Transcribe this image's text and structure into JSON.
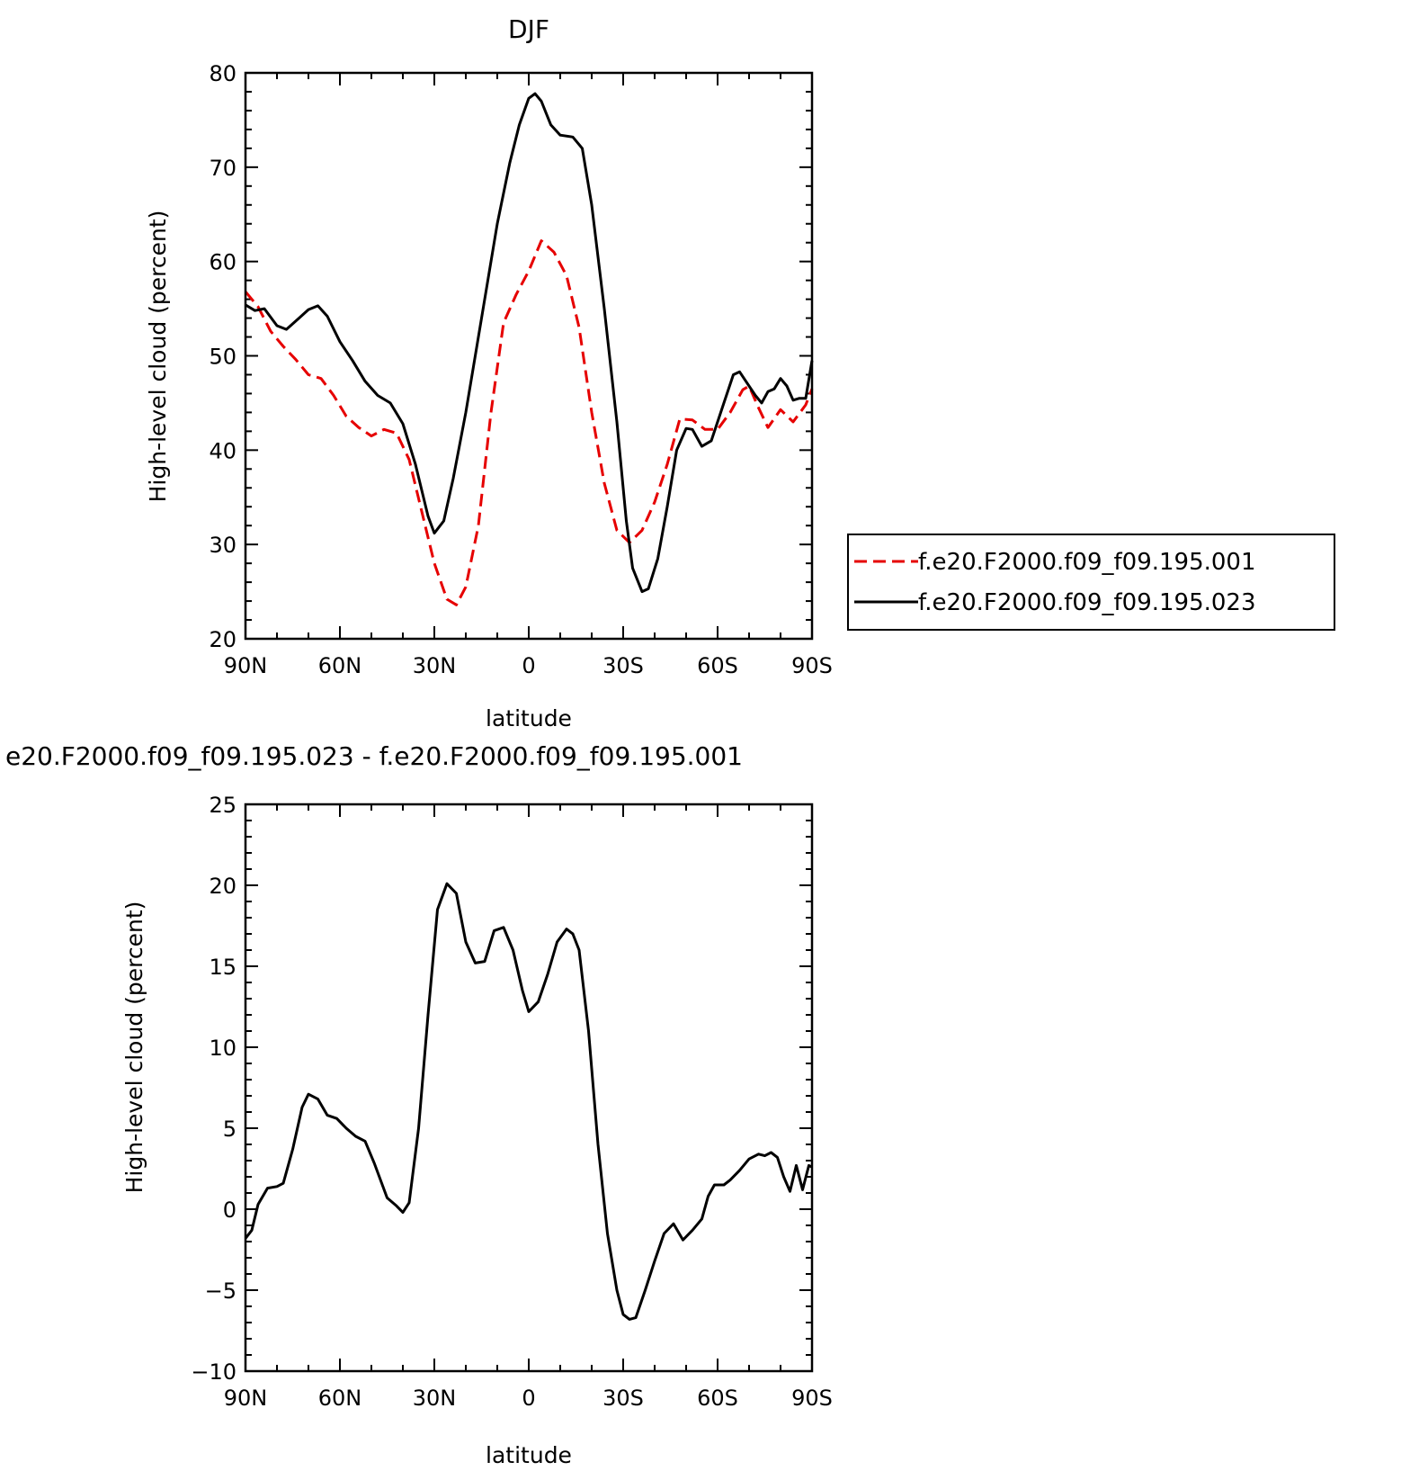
{
  "colors": {
    "model1": "#e60000",
    "model2": "#000000",
    "axis": "#000000"
  },
  "chart_data": [
    {
      "type": "line",
      "title": "DJF",
      "xlabel": "latitude",
      "ylabel": "High-level cloud (percent)",
      "xlim": [
        -90,
        90
      ],
      "ylim": [
        20,
        80
      ],
      "xticks": [
        -90,
        -60,
        -30,
        0,
        30,
        60,
        90
      ],
      "xtick_labels": [
        "90N",
        "60N",
        "30N",
        "0",
        "30S",
        "60S",
        "90S"
      ],
      "yticks": [
        20,
        30,
        40,
        50,
        60,
        70,
        80
      ],
      "ytick_labels": [
        "20",
        "30",
        "40",
        "50",
        "60",
        "70",
        "80"
      ],
      "grid": false,
      "legend": "outside-right",
      "series": [
        {
          "name": "f.e20.F2000.f09_f09.195.001",
          "color": "#e60000",
          "style": "dashed",
          "points": [
            [
              -90,
              56.8
            ],
            [
              -86,
              55.2
            ],
            [
              -82,
              52.6
            ],
            [
              -78,
              51.0
            ],
            [
              -74,
              49.6
            ],
            [
              -70,
              48.0
            ],
            [
              -66,
              47.6
            ],
            [
              -62,
              45.8
            ],
            [
              -58,
              43.6
            ],
            [
              -54,
              42.4
            ],
            [
              -50,
              41.5
            ],
            [
              -46,
              42.2
            ],
            [
              -42,
              41.8
            ],
            [
              -38,
              39.0
            ],
            [
              -34,
              33.5
            ],
            [
              -30,
              28.0
            ],
            [
              -26,
              24.2
            ],
            [
              -23,
              23.6
            ],
            [
              -20,
              25.5
            ],
            [
              -16,
              32.0
            ],
            [
              -12,
              44.0
            ],
            [
              -8,
              53.5
            ],
            [
              -4,
              56.5
            ],
            [
              0,
              59.0
            ],
            [
              4,
              62.2
            ],
            [
              8,
              61.0
            ],
            [
              12,
              58.5
            ],
            [
              16,
              53.0
            ],
            [
              20,
              44.0
            ],
            [
              24,
              36.5
            ],
            [
              28,
              31.5
            ],
            [
              32,
              30.2
            ],
            [
              36,
              31.5
            ],
            [
              40,
              34.5
            ],
            [
              44,
              38.5
            ],
            [
              48,
              43.3
            ],
            [
              52,
              43.2
            ],
            [
              56,
              42.2
            ],
            [
              60,
              42.2
            ],
            [
              64,
              44.0
            ],
            [
              68,
              46.4
            ],
            [
              70,
              46.8
            ],
            [
              73,
              44.5
            ],
            [
              76,
              42.4
            ],
            [
              80,
              44.3
            ],
            [
              84,
              43.0
            ],
            [
              88,
              44.8
            ],
            [
              90,
              46.5
            ]
          ]
        },
        {
          "name": "f.e20.F2000.f09_f09.195.023",
          "color": "#000000",
          "style": "solid",
          "points": [
            [
              -90,
              55.4
            ],
            [
              -87,
              54.8
            ],
            [
              -84,
              55.0
            ],
            [
              -80,
              53.2
            ],
            [
              -77,
              52.8
            ],
            [
              -73,
              54.0
            ],
            [
              -70,
              54.9
            ],
            [
              -67,
              55.3
            ],
            [
              -64,
              54.2
            ],
            [
              -60,
              51.5
            ],
            [
              -56,
              49.5
            ],
            [
              -52,
              47.3
            ],
            [
              -48,
              45.8
            ],
            [
              -44,
              45.0
            ],
            [
              -40,
              42.8
            ],
            [
              -36,
              38.5
            ],
            [
              -32,
              33.0
            ],
            [
              -30,
              31.2
            ],
            [
              -27,
              32.5
            ],
            [
              -24,
              37.0
            ],
            [
              -20,
              44.0
            ],
            [
              -15,
              54.0
            ],
            [
              -10,
              64.0
            ],
            [
              -6,
              70.5
            ],
            [
              -3,
              74.5
            ],
            [
              0,
              77.3
            ],
            [
              2,
              77.8
            ],
            [
              4,
              77.0
            ],
            [
              7,
              74.5
            ],
            [
              10,
              73.4
            ],
            [
              14,
              73.2
            ],
            [
              17,
              72.0
            ],
            [
              20,
              66.0
            ],
            [
              24,
              55.0
            ],
            [
              28,
              43.0
            ],
            [
              31,
              32.5
            ],
            [
              33,
              27.5
            ],
            [
              36,
              25.0
            ],
            [
              38,
              25.3
            ],
            [
              41,
              28.5
            ],
            [
              44,
              34.0
            ],
            [
              47,
              40.0
            ],
            [
              50,
              42.3
            ],
            [
              52,
              42.2
            ],
            [
              55,
              40.4
            ],
            [
              58,
              41.0
            ],
            [
              62,
              45.0
            ],
            [
              65,
              48.0
            ],
            [
              67,
              48.3
            ],
            [
              69,
              47.3
            ],
            [
              72,
              45.8
            ],
            [
              74,
              45.0
            ],
            [
              76,
              46.2
            ],
            [
              78,
              46.5
            ],
            [
              80,
              47.6
            ],
            [
              82,
              46.8
            ],
            [
              84,
              45.3
            ],
            [
              86,
              45.5
            ],
            [
              88,
              45.5
            ],
            [
              90,
              49.5
            ]
          ]
        }
      ]
    },
    {
      "type": "line",
      "title": "e20.F2000.f09_f09.195.023 - f.e20.F2000.f09_f09.195.001",
      "xlabel": "latitude",
      "ylabel": "High-level cloud (percent)",
      "xlim": [
        -90,
        90
      ],
      "ylim": [
        -10,
        25
      ],
      "xticks": [
        -90,
        -60,
        -30,
        0,
        30,
        60,
        90
      ],
      "xtick_labels": [
        "90N",
        "60N",
        "30N",
        "0",
        "30S",
        "60S",
        "90S"
      ],
      "yticks": [
        -10,
        -5,
        0,
        5,
        10,
        15,
        20,
        25
      ],
      "ytick_labels": [
        "−10",
        "−5",
        "0",
        "5",
        "10",
        "15",
        "20",
        "25"
      ],
      "grid": false,
      "series": [
        {
          "name": "",
          "color": "#000000",
          "style": "solid",
          "points": [
            [
              -90,
              -1.8
            ],
            [
              -88,
              -1.3
            ],
            [
              -86,
              0.3
            ],
            [
              -83,
              1.3
            ],
            [
              -80,
              1.4
            ],
            [
              -78,
              1.6
            ],
            [
              -75,
              3.7
            ],
            [
              -72,
              6.3
            ],
            [
              -70,
              7.1
            ],
            [
              -67,
              6.8
            ],
            [
              -64,
              5.8
            ],
            [
              -61,
              5.6
            ],
            [
              -58,
              5.0
            ],
            [
              -55,
              4.5
            ],
            [
              -52,
              4.2
            ],
            [
              -49,
              2.8
            ],
            [
              -45,
              0.7
            ],
            [
              -42,
              0.2
            ],
            [
              -40,
              -0.2
            ],
            [
              -38,
              0.4
            ],
            [
              -35,
              5.0
            ],
            [
              -32,
              12.0
            ],
            [
              -29,
              18.5
            ],
            [
              -26,
              20.1
            ],
            [
              -23,
              19.5
            ],
            [
              -20,
              16.5
            ],
            [
              -17,
              15.2
            ],
            [
              -14,
              15.3
            ],
            [
              -11,
              17.2
            ],
            [
              -8,
              17.4
            ],
            [
              -5,
              16.0
            ],
            [
              -2,
              13.5
            ],
            [
              0,
              12.2
            ],
            [
              3,
              12.8
            ],
            [
              6,
              14.5
            ],
            [
              9,
              16.5
            ],
            [
              12,
              17.3
            ],
            [
              14,
              17.0
            ],
            [
              16,
              16.0
            ],
            [
              19,
              11.0
            ],
            [
              22,
              4.0
            ],
            [
              25,
              -1.5
            ],
            [
              28,
              -5.0
            ],
            [
              30,
              -6.5
            ],
            [
              32,
              -6.8
            ],
            [
              34,
              -6.7
            ],
            [
              37,
              -5.0
            ],
            [
              40,
              -3.2
            ],
            [
              43,
              -1.5
            ],
            [
              46,
              -0.9
            ],
            [
              49,
              -1.9
            ],
            [
              52,
              -1.3
            ],
            [
              55,
              -0.6
            ],
            [
              57,
              0.8
            ],
            [
              59,
              1.5
            ],
            [
              62,
              1.5
            ],
            [
              64,
              1.8
            ],
            [
              67,
              2.4
            ],
            [
              70,
              3.1
            ],
            [
              73,
              3.4
            ],
            [
              75,
              3.3
            ],
            [
              77,
              3.5
            ],
            [
              79,
              3.2
            ],
            [
              81,
              2.0
            ],
            [
              83,
              1.1
            ],
            [
              85,
              2.7
            ],
            [
              87,
              1.2
            ],
            [
              89,
              2.7
            ],
            [
              90,
              2.6
            ]
          ]
        }
      ]
    }
  ]
}
